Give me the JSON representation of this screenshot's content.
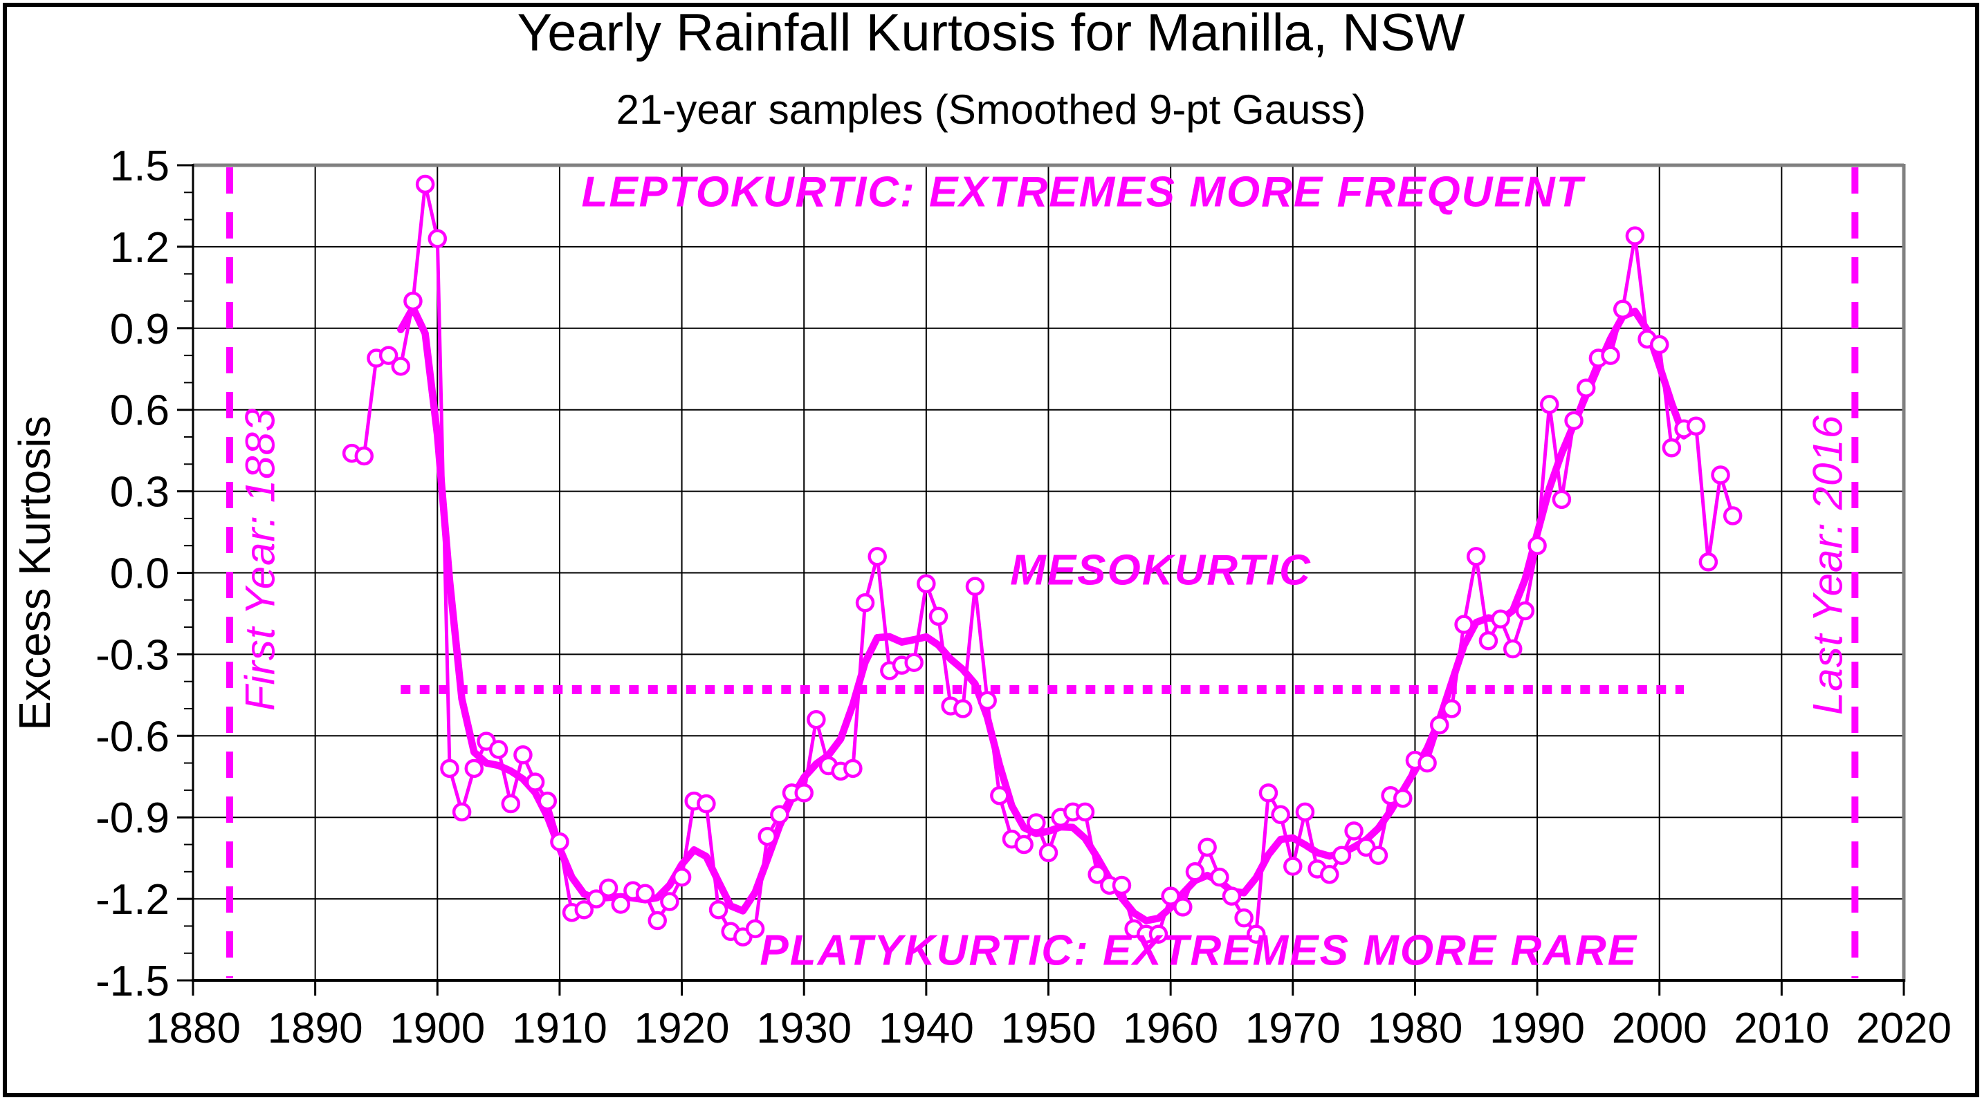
{
  "header": {
    "title": "Yearly Rainfall Kurtosis for Manilla, NSW",
    "subtitle": "21-year samples (Smoothed 9-pt Gauss)"
  },
  "colors": {
    "accent": "#FF00FF",
    "grid": "#000000",
    "frame_gray": "#808080",
    "background": "#FFFFFF",
    "text": "#000000"
  },
  "chart_data": {
    "type": "line",
    "title": "Yearly Rainfall Kurtosis for Manilla, NSW",
    "subtitle": "21-year samples (Smoothed 9-pt Gauss)",
    "xlabel": "",
    "ylabel": "Excess Kurtosis",
    "xlim": [
      1880,
      2020
    ],
    "ylim": [
      -1.5,
      1.5
    ],
    "grid": true,
    "x_tick_labels": [
      "1880",
      "1890",
      "1900",
      "1910",
      "1920",
      "1930",
      "1940",
      "1950",
      "1960",
      "1970",
      "1980",
      "1990",
      "2000",
      "2010",
      "2020"
    ],
    "x_ticks": [
      1880,
      1890,
      1900,
      1910,
      1920,
      1930,
      1940,
      1950,
      1960,
      1970,
      1980,
      1990,
      2000,
      2010,
      2020
    ],
    "y_tick_labels": [
      "1.5",
      "1.2",
      "0.9",
      "0.6",
      "0.3",
      "0.0",
      "-0.3",
      "-0.6",
      "-0.9",
      "-1.2",
      "-1.5"
    ],
    "y_ticks": [
      1.5,
      1.2,
      0.9,
      0.6,
      0.3,
      0.0,
      -0.3,
      -0.6,
      -0.9,
      -1.2,
      -1.5
    ],
    "y_minor_tick_step": 0.1,
    "series": [
      {
        "name": "yearly-excess-kurtosis",
        "style": "thin-line-open-circle-markers",
        "years": [
          1893,
          1894,
          1895,
          1896,
          1897,
          1898,
          1899,
          1900,
          1901,
          1902,
          1903,
          1904,
          1905,
          1906,
          1907,
          1908,
          1909,
          1910,
          1911,
          1912,
          1913,
          1914,
          1915,
          1916,
          1917,
          1918,
          1919,
          1920,
          1921,
          1922,
          1923,
          1924,
          1925,
          1926,
          1927,
          1928,
          1929,
          1930,
          1931,
          1932,
          1933,
          1934,
          1935,
          1936,
          1937,
          1938,
          1939,
          1940,
          1941,
          1942,
          1943,
          1944,
          1945,
          1946,
          1947,
          1948,
          1949,
          1950,
          1951,
          1952,
          1953,
          1954,
          1955,
          1956,
          1957,
          1958,
          1959,
          1960,
          1961,
          1962,
          1963,
          1964,
          1965,
          1966,
          1967,
          1968,
          1969,
          1970,
          1971,
          1972,
          1973,
          1974,
          1975,
          1976,
          1977,
          1978,
          1979,
          1980,
          1981,
          1982,
          1983,
          1984,
          1985,
          1986,
          1987,
          1988,
          1989,
          1990,
          1991,
          1992,
          1993,
          1994,
          1995,
          1996,
          1997,
          1998,
          1999,
          2000,
          2001,
          2002,
          2003,
          2004,
          2005,
          2006
        ],
        "values": [
          0.44,
          0.43,
          0.79,
          0.8,
          0.76,
          1.0,
          1.43,
          1.23,
          -0.72,
          -0.88,
          -0.72,
          -0.62,
          -0.65,
          -0.85,
          -0.67,
          -0.77,
          -0.84,
          -0.99,
          -1.25,
          -1.24,
          -1.2,
          -1.16,
          -1.22,
          -1.17,
          -1.18,
          -1.28,
          -1.21,
          -1.12,
          -0.84,
          -0.85,
          -1.24,
          -1.32,
          -1.34,
          -1.31,
          -0.97,
          -0.89,
          -0.81,
          -0.81,
          -0.54,
          -0.71,
          -0.73,
          -0.72,
          -0.11,
          0.06,
          -0.36,
          -0.34,
          -0.33,
          -0.04,
          -0.16,
          -0.49,
          -0.5,
          -0.05,
          -0.47,
          -0.82,
          -0.98,
          -1.0,
          -0.92,
          -1.03,
          -0.9,
          -0.88,
          -0.88,
          -1.11,
          -1.15,
          -1.15,
          -1.31,
          -1.33,
          -1.33,
          -1.19,
          -1.23,
          -1.1,
          -1.01,
          -1.12,
          -1.19,
          -1.27,
          -1.33,
          -0.81,
          -0.89,
          -1.08,
          -0.88,
          -1.09,
          -1.11,
          -1.04,
          -0.95,
          -1.01,
          -1.04,
          -0.82,
          -0.83,
          -0.69,
          -0.7,
          -0.56,
          -0.5,
          -0.19,
          0.06,
          -0.25,
          -0.17,
          -0.28,
          -0.14,
          0.1,
          0.62,
          0.27,
          0.56,
          0.68,
          0.79,
          0.8,
          0.97,
          1.24,
          0.86,
          0.84,
          0.46,
          0.53,
          0.54,
          0.04,
          0.36,
          0.21
        ]
      },
      {
        "name": "smoothed-9pt-gauss",
        "style": "thick-line",
        "derived_from": "yearly-excess-kurtosis",
        "kernel": [
          1,
          8,
          28,
          56,
          70,
          56,
          28,
          8,
          1
        ],
        "year_start": 1897,
        "year_end": 2002
      }
    ],
    "baseline": {
      "name": "mesokurtic-baseline",
      "value": -0.43,
      "year_start": 1897,
      "year_end": 2002,
      "style": "square-dotted"
    },
    "reference_lines": [
      {
        "name": "first-year-line",
        "year": 1883,
        "label": "First Year: 1883",
        "label_center_year": 1885.5,
        "label_center_value": 0.05
      },
      {
        "name": "last-year-line",
        "year": 2016,
        "label": "Last Year: 2016",
        "label_center_year": 2013.8,
        "label_center_value": 0.03
      }
    ],
    "annotations": [
      {
        "name": "leptokurtic",
        "text": "LEPTOKURTIC: EXTREMES MORE FREQUENT",
        "center_year": 1952.8,
        "center_value": 1.4
      },
      {
        "name": "mesokurtic",
        "text": "MESOKURTIC",
        "center_year": 1959.2,
        "center_value": 0.01
      },
      {
        "name": "platykurtic",
        "text": "PLATYKURTIC: EXTREMES MORE RARE",
        "center_year": 1962.3,
        "center_value": -1.39
      }
    ],
    "legend_position": "none"
  }
}
